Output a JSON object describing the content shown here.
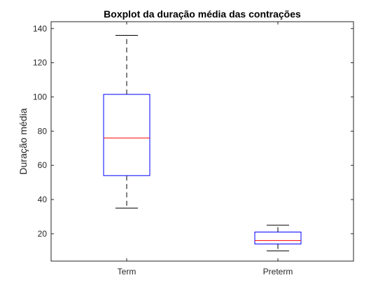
{
  "chart_data": {
    "type": "boxplot",
    "title": "Boxplot da duração média das contrações",
    "xlabel": "",
    "ylabel": "Duração média",
    "categories": [
      "Term",
      "Preterm"
    ],
    "boxes": [
      {
        "category": "Term",
        "min": 35,
        "q1": 54,
        "median": 76,
        "q3": 101.5,
        "max": 136
      },
      {
        "category": "Preterm",
        "min": 10,
        "q1": 14,
        "median": 16,
        "q3": 21,
        "max": 25
      }
    ],
    "ylim": [
      4,
      144
    ],
    "yticks": [
      20,
      40,
      60,
      80,
      100,
      120,
      140
    ],
    "grid": false,
    "colors": {
      "box": "#0000ff",
      "median": "#ff0000",
      "whisker": "#000000",
      "axes": "#262626"
    }
  }
}
